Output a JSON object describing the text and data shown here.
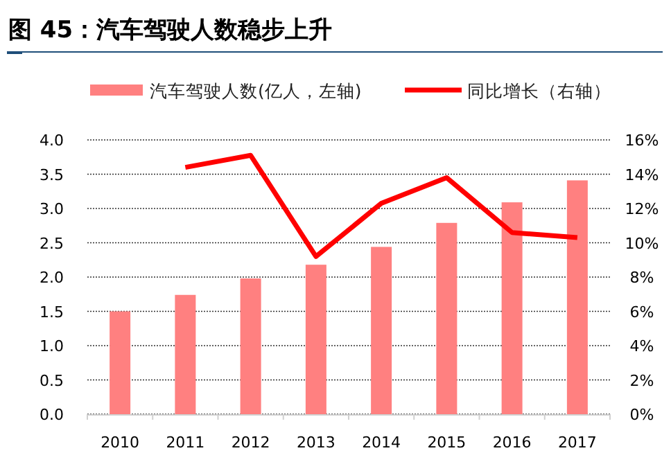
{
  "chart_data": {
    "type": "bar",
    "title": "图 45：汽车驾驶人数稳步上升",
    "categories": [
      "2010",
      "2011",
      "2012",
      "2013",
      "2014",
      "2015",
      "2016",
      "2017"
    ],
    "series": [
      {
        "name": "汽车驾驶人数(亿人，左轴)",
        "color": "#ff8080",
        "values": [
          1.5,
          1.74,
          1.98,
          2.18,
          2.44,
          2.79,
          3.09,
          3.41
        ]
      },
      {
        "name": "同比增长（右轴）",
        "type": "line",
        "axis": "y2",
        "color": "#ff0000",
        "values": [
          null,
          14.4,
          15.1,
          9.2,
          12.3,
          13.8,
          10.6,
          10.3
        ]
      }
    ],
    "ylim": [
      0,
      4
    ],
    "yticks": [
      {
        "value": 0,
        "label": "0.0"
      },
      {
        "value": 0.5,
        "label": "0.5"
      },
      {
        "value": 1,
        "label": "1.0"
      },
      {
        "value": 1.5,
        "label": "1.5"
      },
      {
        "value": 2,
        "label": "2.0"
      },
      {
        "value": 2.5,
        "label": "2.5"
      },
      {
        "value": 3,
        "label": "3.0"
      },
      {
        "value": 3.5,
        "label": "3.5"
      },
      {
        "value": 4,
        "label": "4.0"
      }
    ],
    "y2lim": [
      0,
      16
    ],
    "y2ticks": [
      {
        "value": 0,
        "label": "0%"
      },
      {
        "value": 2,
        "label": "2%"
      },
      {
        "value": 4,
        "label": "4%"
      },
      {
        "value": 6,
        "label": "6%"
      },
      {
        "value": 8,
        "label": "8%"
      },
      {
        "value": 10,
        "label": "10%"
      },
      {
        "value": 12,
        "label": "12%"
      },
      {
        "value": 14,
        "label": "14%"
      },
      {
        "value": 16,
        "label": "16%"
      }
    ],
    "grid": "y",
    "legend": "top"
  }
}
